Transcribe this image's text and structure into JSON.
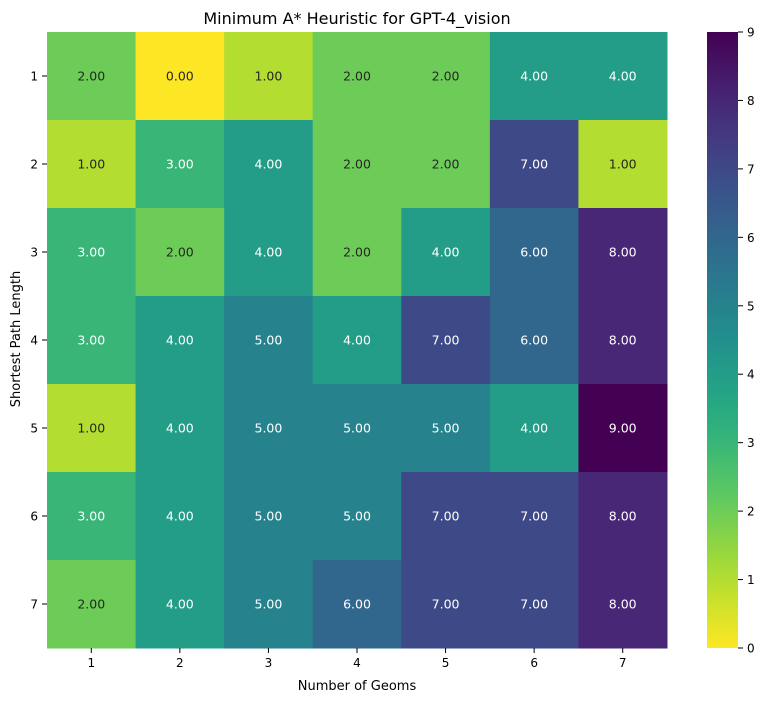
{
  "chart_data": {
    "type": "heatmap",
    "title": "Minimum A* Heuristic for GPT-4_vision",
    "xlabel": "Number of Geoms",
    "ylabel": "Shortest Path Length",
    "x": [
      "1",
      "2",
      "3",
      "4",
      "5",
      "6",
      "7"
    ],
    "y": [
      "1",
      "2",
      "3",
      "4",
      "5",
      "6",
      "7"
    ],
    "values": [
      [
        2,
        0,
        1,
        2,
        2,
        4,
        4
      ],
      [
        1,
        3,
        4,
        2,
        2,
        7,
        1
      ],
      [
        3,
        2,
        4,
        2,
        4,
        6,
        8
      ],
      [
        3,
        4,
        5,
        4,
        7,
        6,
        8
      ],
      [
        1,
        4,
        5,
        5,
        5,
        4,
        9
      ],
      [
        3,
        4,
        5,
        5,
        7,
        7,
        8
      ],
      [
        2,
        4,
        5,
        6,
        7,
        7,
        8
      ]
    ],
    "value_format": "2 decimals",
    "colormap": "viridis (reversed)",
    "vmin": 0,
    "vmax": 9,
    "colorbar_ticks": [
      "0",
      "1",
      "2",
      "3",
      "4",
      "5",
      "6",
      "7",
      "8",
      "9"
    ],
    "grid": false,
    "legend": "colorbar-right"
  }
}
